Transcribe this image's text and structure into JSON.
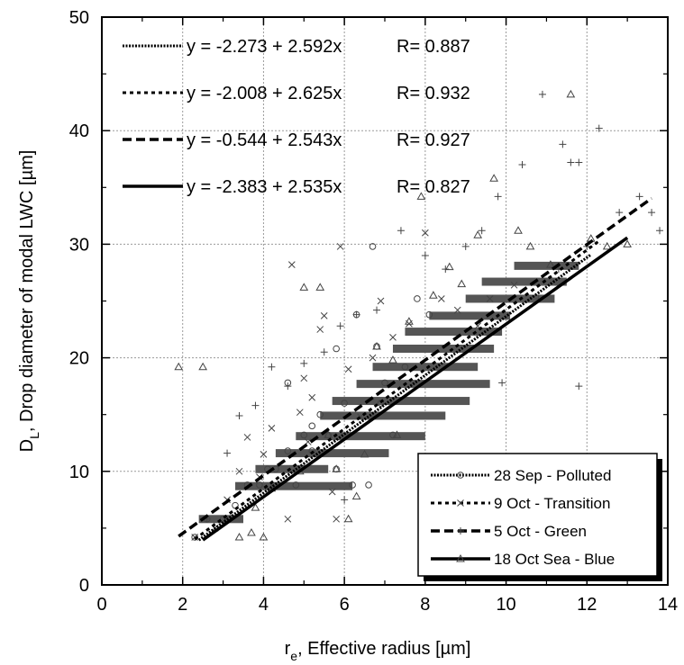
{
  "chart_data": {
    "type": "scatter",
    "xlabel_main": "r",
    "xlabel_sub": "e",
    "xlabel_rest": ", Effective radius [µm]",
    "ylabel_main": "D",
    "ylabel_sub": "L",
    "ylabel_rest": ", Drop diameter of modal LWC [µm]",
    "xlim": [
      0,
      14
    ],
    "ylim": [
      0,
      50
    ],
    "xticks": [
      "0",
      "2",
      "4",
      "6",
      "8",
      "10",
      "12",
      "14"
    ],
    "yticks": [
      "0",
      "10",
      "20",
      "30",
      "40",
      "50"
    ],
    "grid": true,
    "equations_location": "top-left",
    "legend_location": "bottom-right",
    "fits": [
      {
        "equation": "y = -2.273 + 2.592x",
        "r": "R= 0.887",
        "intercept": -2.273,
        "slope": 2.592,
        "x_range": [
          2.4,
          12.1
        ],
        "dash": "dense-dotted"
      },
      {
        "equation": "y = -2.008 + 2.625x",
        "r": "R= 0.932",
        "intercept": -2.008,
        "slope": 2.625,
        "x_range": [
          2.3,
          12.3
        ],
        "dash": "dotted"
      },
      {
        "equation": "y = -0.544 + 2.543x",
        "r": "R= 0.927",
        "intercept": -0.544,
        "slope": 2.543,
        "x_range": [
          1.9,
          13.6
        ],
        "dash": "dashed"
      },
      {
        "equation": "y = -2.383 + 2.535x",
        "r": "R= 0.827",
        "intercept": -2.383,
        "slope": 2.535,
        "x_range": [
          2.5,
          13.0
        ],
        "dash": "solid"
      }
    ],
    "series": [
      {
        "name": "28 Sep - Polluted",
        "marker": "circle",
        "points": [
          [
            2.3,
            4.2
          ],
          [
            2.6,
            5.8
          ],
          [
            3.0,
            5.8
          ],
          [
            3.3,
            7.0
          ],
          [
            3.6,
            8.8
          ],
          [
            3.9,
            8.8
          ],
          [
            4.1,
            10.2
          ],
          [
            4.3,
            10.2
          ],
          [
            4.6,
            11.8
          ],
          [
            4.8,
            8.8
          ],
          [
            5.0,
            13.2
          ],
          [
            5.2,
            11.8
          ],
          [
            5.4,
            15.0
          ],
          [
            5.6,
            13.2
          ],
          [
            5.8,
            10.2
          ],
          [
            6.0,
            16.0
          ],
          [
            6.2,
            8.8
          ],
          [
            6.3,
            23.8
          ],
          [
            6.6,
            8.8
          ],
          [
            6.7,
            29.8
          ],
          [
            6.8,
            21.0
          ],
          [
            7.0,
            17.8
          ],
          [
            7.2,
            13.2
          ],
          [
            7.5,
            19.2
          ],
          [
            7.8,
            25.2
          ],
          [
            8.1,
            23.8
          ],
          [
            5.8,
            20.8
          ],
          [
            4.6,
            17.8
          ],
          [
            5.2,
            14.0
          ],
          [
            6.9,
            16.0
          ]
        ]
      },
      {
        "name": "9 Oct - Transition",
        "marker": "x",
        "points": [
          [
            2.3,
            4.2
          ],
          [
            2.8,
            5.0
          ],
          [
            3.1,
            7.5
          ],
          [
            3.4,
            10.0
          ],
          [
            3.6,
            13.0
          ],
          [
            4.0,
            11.5
          ],
          [
            4.2,
            13.8
          ],
          [
            4.7,
            28.2
          ],
          [
            4.9,
            15.2
          ],
          [
            5.0,
            18.2
          ],
          [
            5.2,
            16.5
          ],
          [
            5.4,
            22.5
          ],
          [
            5.5,
            23.7
          ],
          [
            5.7,
            8.2
          ],
          [
            5.9,
            29.8
          ],
          [
            6.1,
            19.0
          ],
          [
            6.4,
            14.8
          ],
          [
            6.7,
            20.0
          ],
          [
            6.9,
            25.0
          ],
          [
            7.2,
            21.8
          ],
          [
            7.6,
            23.0
          ],
          [
            8.0,
            31.0
          ],
          [
            8.4,
            25.2
          ],
          [
            8.8,
            24.2
          ],
          [
            9.3,
            22.8
          ],
          [
            9.6,
            25.2
          ],
          [
            10.2,
            26.4
          ],
          [
            5.8,
            5.8
          ],
          [
            4.6,
            5.8
          ],
          [
            3.9,
            9.5
          ],
          [
            5.1,
            12.6
          ]
        ]
      },
      {
        "name": "5 Oct - Green",
        "marker": "plus",
        "points": [
          [
            3.4,
            14.9
          ],
          [
            3.8,
            15.8
          ],
          [
            4.2,
            19.2
          ],
          [
            4.6,
            17.5
          ],
          [
            5.0,
            19.5
          ],
          [
            5.5,
            20.5
          ],
          [
            5.9,
            22.8
          ],
          [
            6.3,
            23.8
          ],
          [
            6.8,
            24.2
          ],
          [
            7.4,
            31.2
          ],
          [
            8.0,
            29.0
          ],
          [
            8.5,
            27.8
          ],
          [
            9.0,
            29.8
          ],
          [
            9.4,
            31.2
          ],
          [
            9.8,
            34.2
          ],
          [
            10.4,
            37.0
          ],
          [
            10.9,
            43.2
          ],
          [
            11.4,
            38.8
          ],
          [
            11.6,
            37.2
          ],
          [
            11.8,
            37.2
          ],
          [
            12.3,
            40.2
          ],
          [
            12.8,
            32.8
          ],
          [
            13.3,
            34.2
          ],
          [
            13.6,
            32.8
          ],
          [
            13.8,
            31.2
          ],
          [
            10.8,
            25.2
          ],
          [
            11.3,
            27.8
          ],
          [
            12.0,
            29.8
          ],
          [
            9.9,
            17.8
          ],
          [
            11.8,
            17.5
          ],
          [
            3.1,
            11.6
          ],
          [
            2.6,
            5.8
          ],
          [
            6.0,
            7.5
          ]
        ]
      },
      {
        "name": "18 Oct Sea - Blue",
        "marker": "triangle",
        "points": [
          [
            1.9,
            19.2
          ],
          [
            2.5,
            19.2
          ],
          [
            3.4,
            4.2
          ],
          [
            3.7,
            4.6
          ],
          [
            4.0,
            4.2
          ],
          [
            4.2,
            8.5
          ],
          [
            4.9,
            10.0
          ],
          [
            5.0,
            26.2
          ],
          [
            5.4,
            26.2
          ],
          [
            5.6,
            13.2
          ],
          [
            6.3,
            7.8
          ],
          [
            6.5,
            11.5
          ],
          [
            6.8,
            21.0
          ],
          [
            7.2,
            19.8
          ],
          [
            7.6,
            23.2
          ],
          [
            7.9,
            34.2
          ],
          [
            8.2,
            25.5
          ],
          [
            8.6,
            28.0
          ],
          [
            8.9,
            26.5
          ],
          [
            9.3,
            30.8
          ],
          [
            9.7,
            35.8
          ],
          [
            10.3,
            31.2
          ],
          [
            10.6,
            29.8
          ],
          [
            11.1,
            28.2
          ],
          [
            11.6,
            43.2
          ],
          [
            12.1,
            30.5
          ],
          [
            12.5,
            29.8
          ],
          [
            13.0,
            30.0
          ],
          [
            5.8,
            10.2
          ],
          [
            7.3,
            13.2
          ],
          [
            3.8,
            6.8
          ],
          [
            6.1,
            5.8
          ]
        ]
      }
    ],
    "bands": [
      {
        "y": 5.8,
        "x_min": 2.4,
        "x_max": 3.5
      },
      {
        "y": 8.7,
        "x_min": 3.3,
        "x_max": 6.2
      },
      {
        "y": 10.2,
        "x_min": 3.8,
        "x_max": 5.6
      },
      {
        "y": 11.6,
        "x_min": 4.3,
        "x_max": 7.1
      },
      {
        "y": 13.1,
        "x_min": 4.8,
        "x_max": 8.0
      },
      {
        "y": 14.9,
        "x_min": 5.4,
        "x_max": 8.5
      },
      {
        "y": 16.2,
        "x_min": 5.7,
        "x_max": 9.1
      },
      {
        "y": 17.7,
        "x_min": 6.3,
        "x_max": 9.6
      },
      {
        "y": 19.2,
        "x_min": 6.7,
        "x_max": 9.3
      },
      {
        "y": 20.8,
        "x_min": 7.2,
        "x_max": 9.7
      },
      {
        "y": 22.3,
        "x_min": 7.5,
        "x_max": 9.9
      },
      {
        "y": 23.7,
        "x_min": 8.1,
        "x_max": 10.1
      },
      {
        "y": 25.2,
        "x_min": 9.0,
        "x_max": 11.2
      },
      {
        "y": 26.7,
        "x_min": 9.4,
        "x_max": 11.5
      },
      {
        "y": 28.1,
        "x_min": 10.2,
        "x_max": 11.8
      }
    ]
  }
}
